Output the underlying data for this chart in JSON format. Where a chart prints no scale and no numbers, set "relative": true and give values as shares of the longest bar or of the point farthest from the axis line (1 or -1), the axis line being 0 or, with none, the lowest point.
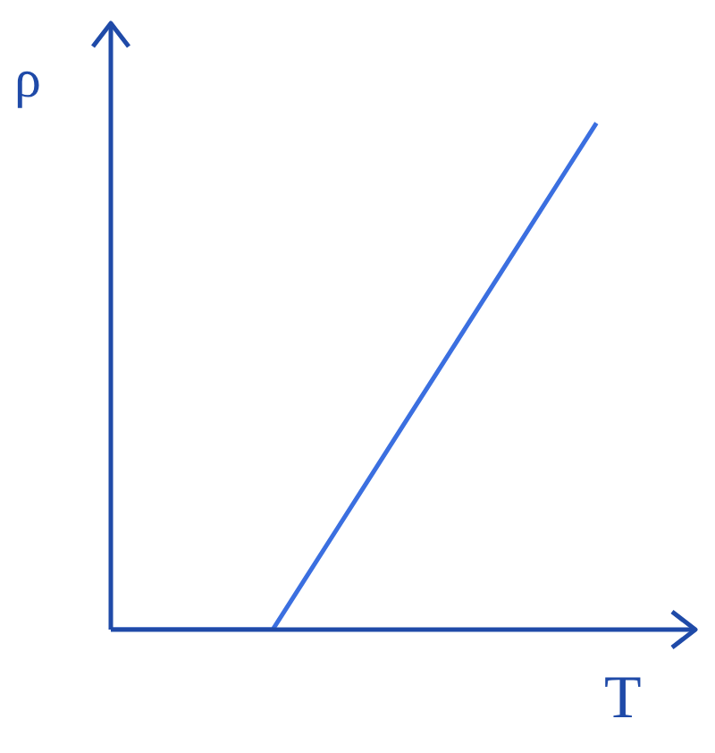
{
  "chart_data": {
    "type": "line",
    "relative": true,
    "xlabel": "T",
    "ylabel": "ρ",
    "marker": "none",
    "line_style": "solid",
    "categories": [
      null,
      null,
      null,
      null,
      null,
      null,
      null,
      null,
      null,
      null,
      null,
      null,
      null,
      null,
      null,
      null,
      null,
      null,
      null
    ],
    "series": [
      {
        "color": "#3b6fe0",
        "values": [
          0,
          0,
          0,
          0,
          0,
          0,
          0.1,
          0.2,
          0.3,
          0.4,
          0.5,
          0.6,
          0.7,
          0.8,
          0.9,
          1,
          null,
          null,
          null
        ]
      }
    ]
  }
}
